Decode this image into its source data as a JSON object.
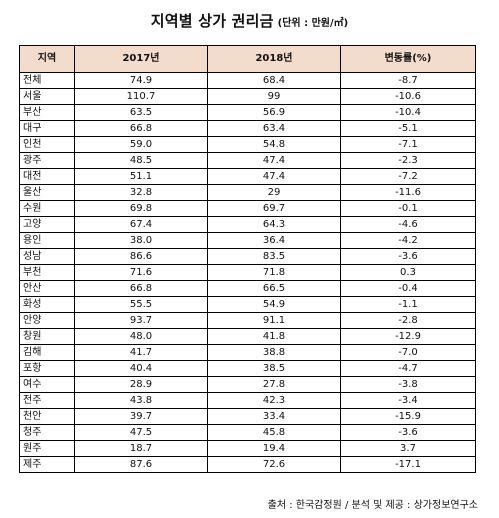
{
  "title": {
    "main": "지역별 상가 권리금",
    "unit": "(단위 : 만원/㎡)"
  },
  "table": {
    "headers": [
      "지역",
      "2017년",
      "2018년",
      "변동률(%)"
    ],
    "rows": [
      [
        "전체",
        "74.9",
        "68.4",
        "-8.7"
      ],
      [
        "서울",
        "110.7",
        "99",
        "-10.6"
      ],
      [
        "부산",
        "63.5",
        "56.9",
        "-10.4"
      ],
      [
        "대구",
        "66.8",
        "63.4",
        "-5.1"
      ],
      [
        "인천",
        "59.0",
        "54.8",
        "-7.1"
      ],
      [
        "광주",
        "48.5",
        "47.4",
        "-2.3"
      ],
      [
        "대전",
        "51.1",
        "47.4",
        "-7.2"
      ],
      [
        "울산",
        "32.8",
        "29",
        "-11.6"
      ],
      [
        "수원",
        "69.8",
        "69.7",
        "-0.1"
      ],
      [
        "고양",
        "67.4",
        "64.3",
        "-4.6"
      ],
      [
        "용인",
        "38.0",
        "36.4",
        "-4.2"
      ],
      [
        "성남",
        "86.6",
        "83.5",
        "-3.6"
      ],
      [
        "부천",
        "71.6",
        "71.8",
        "0.3"
      ],
      [
        "안산",
        "66.8",
        "66.5",
        "-0.4"
      ],
      [
        "화성",
        "55.5",
        "54.9",
        "-1.1"
      ],
      [
        "안양",
        "93.7",
        "91.1",
        "-2.8"
      ],
      [
        "창원",
        "48.0",
        "41.8",
        "-12.9"
      ],
      [
        "김해",
        "41.7",
        "38.8",
        "-7.0"
      ],
      [
        "포항",
        "40.4",
        "38.5",
        "-4.7"
      ],
      [
        "여수",
        "28.9",
        "27.8",
        "-3.8"
      ],
      [
        "전주",
        "43.8",
        "42.3",
        "-3.4"
      ],
      [
        "천안",
        "39.7",
        "33.4",
        "-15.9"
      ],
      [
        "청주",
        "47.5",
        "45.8",
        "-3.6"
      ],
      [
        "원주",
        "18.7",
        "19.4",
        "3.7"
      ],
      [
        "제주",
        "87.6",
        "72.6",
        "-17.1"
      ]
    ]
  },
  "source": "출처 : 한국감정원 / 분석 및 제공 : 상가정보연구소"
}
